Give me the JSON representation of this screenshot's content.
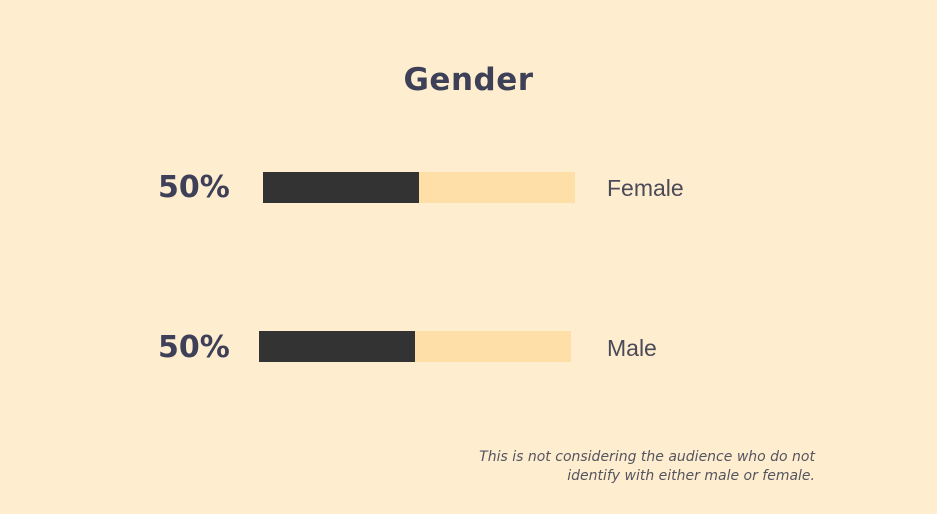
{
  "chart_data": {
    "type": "bar",
    "title": "Gender",
    "categories": [
      "Female",
      "Male"
    ],
    "values": [
      50,
      50
    ],
    "value_labels": [
      "50%",
      "50%"
    ],
    "unit": "%",
    "xlim": [
      0,
      100
    ],
    "orientation": "horizontal",
    "grid": false,
    "legend": "none",
    "footnote": "This is not considering the audience who do not identify with either male or female."
  },
  "colors": {
    "background": "#FFEDCF",
    "bar_fill": "#333333",
    "bar_track": "#FFDFA8",
    "title": "#3D4057",
    "label": "#4A4A58"
  }
}
